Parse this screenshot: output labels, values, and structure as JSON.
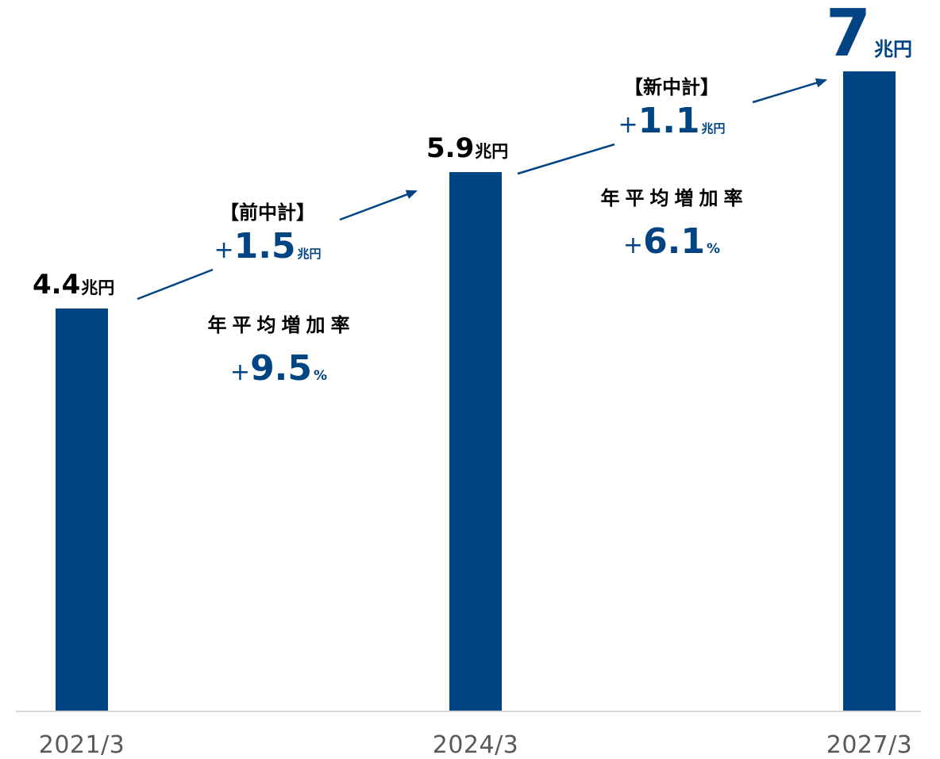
{
  "chart_data": {
    "type": "bar",
    "categories": [
      "2021/3",
      "2024/3",
      "2027/3"
    ],
    "values": [
      4.4,
      5.9,
      7
    ],
    "unit": "兆円",
    "value_labels": [
      "4.4",
      "5.9",
      "7"
    ],
    "ylim": [
      0,
      7
    ],
    "bar_color": "#004483",
    "annotations": [
      {
        "title": "【前中計】",
        "plus": "+",
        "increase": "1.5",
        "increase_unit": "兆円",
        "rate_title": "年平均増加率",
        "rate": "9.5",
        "rate_unit": "%"
      },
      {
        "title": "【新中計】",
        "plus": "+",
        "increase": "1.1",
        "increase_unit": "兆円",
        "rate_title": "年平均増加率",
        "rate": "6.1",
        "rate_unit": "%"
      }
    ]
  }
}
